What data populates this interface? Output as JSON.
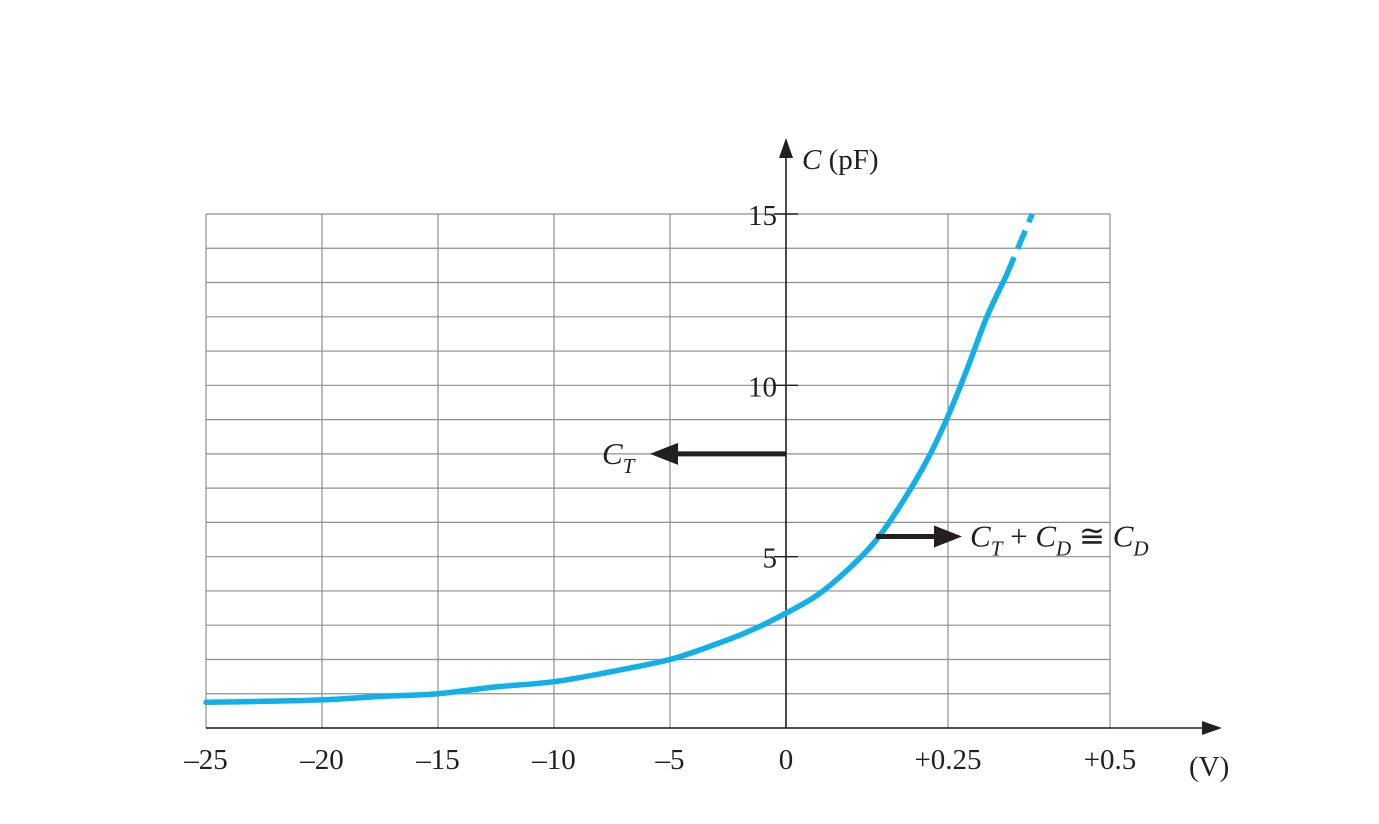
{
  "chart_data": {
    "type": "line",
    "title": "",
    "ylabel": "C (pF)",
    "xlabel": "(V)",
    "ylim": [
      0,
      15
    ],
    "yticks": [
      {
        "value": 5,
        "label": "5"
      },
      {
        "value": 10,
        "label": "10"
      },
      {
        "value": 15,
        "label": "15"
      }
    ],
    "xticks": [
      {
        "label": "–25"
      },
      {
        "label": "–20"
      },
      {
        "label": "–15"
      },
      {
        "label": "–10"
      },
      {
        "label": "–5"
      },
      {
        "label": "0"
      },
      {
        "label": "+0.25"
      },
      {
        "label": "+0.5"
      }
    ],
    "x_scale_note": "Non-uniform x-axis: reverse-bias region from –25 V to 0 V, forward-bias region from 0 to +0.5 V",
    "grid": true,
    "colors": {
      "curve": "#12b0e8",
      "grid": "#8f8f8f",
      "axis": "#231f20",
      "arrow": "#231f20"
    },
    "series": [
      {
        "name": "",
        "x": [
          -25,
          -22.5,
          -20,
          -17.5,
          -15,
          -12.5,
          -10,
          -7.5,
          -5,
          -3,
          -1.5,
          0,
          0.05,
          0.1,
          0.14,
          0.18,
          0.22,
          0.25,
          0.28,
          0.31,
          0.34
        ],
        "y": [
          0.75,
          0.78,
          0.82,
          0.92,
          1.0,
          1.2,
          1.35,
          1.65,
          2.0,
          2.45,
          2.85,
          3.35,
          3.9,
          4.7,
          5.5,
          6.6,
          7.9,
          9.1,
          10.5,
          12.0,
          13.2
        ]
      }
    ],
    "dashed_extension": {
      "x": [
        0.34,
        0.38
      ],
      "y": [
        13.2,
        15.0
      ]
    },
    "annotations": [
      {
        "label": "C_T",
        "main": "C",
        "sub": "T",
        "arrow": "left",
        "at_y": 8.0
      },
      {
        "label": "C_T + C_D ≅ C_D",
        "arrow": "right",
        "at_y": 5.5,
        "parts": [
          {
            "main": "C",
            "sub": "T"
          },
          {
            "op": " + "
          },
          {
            "main": "C",
            "sub": "D"
          },
          {
            "op": " ≅ "
          },
          {
            "main": "C",
            "sub": "D"
          }
        ]
      }
    ]
  }
}
